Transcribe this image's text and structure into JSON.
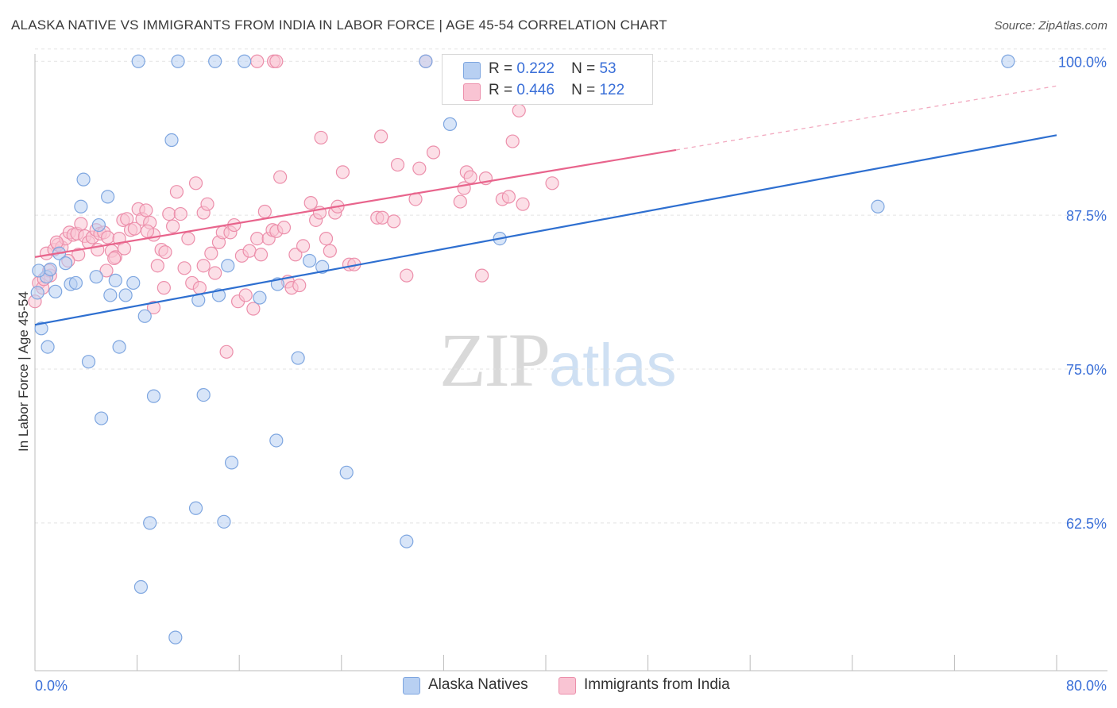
{
  "title": "ALASKA NATIVE VS IMMIGRANTS FROM INDIA IN LABOR FORCE | AGE 45-54 CORRELATION CHART",
  "source": "Source: ZipAtlas.com",
  "watermark": {
    "zip": "ZIP",
    "atlas": "atlas"
  },
  "legend": {
    "rows": [
      {
        "r_label": "R =",
        "r_value": "0.222",
        "n_label": "N =",
        "n_value": "53",
        "color": "#b8d0f2",
        "border": "#7ea6e0"
      },
      {
        "r_label": "R =",
        "r_value": "0.446",
        "n_label": "N =",
        "n_value": "122",
        "color": "#f9c4d3",
        "border": "#ec8fab"
      }
    ]
  },
  "bottom_legend": [
    {
      "label": "Alaska Natives",
      "color": "#b8d0f2",
      "border": "#7ea6e0"
    },
    {
      "label": "Immigrants from India",
      "color": "#f9c4d3",
      "border": "#ec8fab"
    }
  ],
  "chart_data": {
    "type": "scatter",
    "title": "ALASKA NATIVE VS IMMIGRANTS FROM INDIA IN LABOR FORCE | AGE 45-54 CORRELATION CHART",
    "xlabel": "",
    "ylabel": "In Labor Force | Age 45-54",
    "xlim": [
      0,
      80
    ],
    "ylim": [
      50.5,
      101.5
    ],
    "x_tick_labels": [
      "0.0%",
      "80.0%"
    ],
    "y_ticks": [
      62.5,
      75.0,
      87.5,
      100.0
    ],
    "y_tick_labels": [
      "62.5%",
      "75.0%",
      "87.5%",
      "100.0%"
    ],
    "grid": true,
    "legend_position": "top-center",
    "series": [
      {
        "name": "Alaska Natives",
        "color": "#7ea6e0",
        "fill": "#b8d0f2",
        "line_color": "#2e6fd0",
        "trend": {
          "x": [
            0,
            80
          ],
          "y": [
            78.6,
            94.0
          ]
        },
        "points": [
          [
            0.2,
            81.2
          ],
          [
            0.5,
            78.3
          ],
          [
            0.9,
            82.5
          ],
          [
            1.2,
            83.1
          ],
          [
            1.6,
            81.3
          ],
          [
            1.9,
            84.4
          ],
          [
            2.4,
            83.6
          ],
          [
            2.8,
            81.9
          ],
          [
            3.2,
            82.0
          ],
          [
            3.6,
            88.2
          ],
          [
            3.8,
            90.4
          ],
          [
            4.2,
            75.6
          ],
          [
            4.8,
            82.5
          ],
          [
            5.0,
            86.7
          ],
          [
            5.2,
            71.0
          ],
          [
            5.7,
            89.0
          ],
          [
            5.9,
            81.0
          ],
          [
            6.3,
            82.2
          ],
          [
            6.6,
            76.8
          ],
          [
            7.1,
            81.0
          ],
          [
            7.7,
            82.0
          ],
          [
            8.1,
            100.0
          ],
          [
            8.3,
            57.3
          ],
          [
            8.6,
            79.3
          ],
          [
            9.0,
            62.5
          ],
          [
            9.3,
            72.8
          ],
          [
            10.7,
            93.6
          ],
          [
            11.0,
            53.2
          ],
          [
            11.2,
            100.0
          ],
          [
            12.6,
            63.7
          ],
          [
            12.8,
            80.6
          ],
          [
            13.2,
            72.9
          ],
          [
            14.1,
            100.0
          ],
          [
            14.4,
            81.0
          ],
          [
            14.8,
            62.6
          ],
          [
            15.1,
            83.4
          ],
          [
            15.4,
            67.4
          ],
          [
            16.4,
            100.0
          ],
          [
            17.6,
            80.8
          ],
          [
            18.9,
            69.2
          ],
          [
            19.0,
            81.9
          ],
          [
            20.6,
            75.9
          ],
          [
            21.5,
            83.8
          ],
          [
            22.5,
            83.3
          ],
          [
            24.4,
            66.6
          ],
          [
            29.1,
            61.0
          ],
          [
            30.6,
            100.0
          ],
          [
            32.5,
            94.9
          ],
          [
            36.4,
            85.6
          ],
          [
            66.0,
            88.2
          ],
          [
            76.2,
            100.0
          ],
          [
            0.3,
            83.0
          ],
          [
            1.0,
            76.8
          ]
        ]
      },
      {
        "name": "Immigrants from India",
        "color": "#ec8fab",
        "fill": "#f9c4d3",
        "line_color": "#e8648c",
        "trend": {
          "x": [
            0,
            50.2
          ],
          "y": [
            84.1,
            92.8
          ]
        },
        "trend_dashed": {
          "x": [
            50.2,
            80
          ],
          "y": [
            92.8,
            98.0
          ]
        },
        "points": [
          [
            0.0,
            80.5
          ],
          [
            0.3,
            82.0
          ],
          [
            0.6,
            81.6
          ],
          [
            0.9,
            84.4
          ],
          [
            1.2,
            82.6
          ],
          [
            1.5,
            84.7
          ],
          [
            1.8,
            85.1
          ],
          [
            2.1,
            84.9
          ],
          [
            2.4,
            85.6
          ],
          [
            2.7,
            86.1
          ],
          [
            3.0,
            85.9
          ],
          [
            3.3,
            86.0
          ],
          [
            3.6,
            86.8
          ],
          [
            3.9,
            85.8
          ],
          [
            4.2,
            85.3
          ],
          [
            4.5,
            85.7
          ],
          [
            4.8,
            86.3
          ],
          [
            5.1,
            86.0
          ],
          [
            5.4,
            86.1
          ],
          [
            5.7,
            85.7
          ],
          [
            6.0,
            84.6
          ],
          [
            6.3,
            84.1
          ],
          [
            6.6,
            85.6
          ],
          [
            6.9,
            87.1
          ],
          [
            7.2,
            87.2
          ],
          [
            7.5,
            86.3
          ],
          [
            7.8,
            86.4
          ],
          [
            8.1,
            88.0
          ],
          [
            8.4,
            87.2
          ],
          [
            8.7,
            87.9
          ],
          [
            9.0,
            86.9
          ],
          [
            9.3,
            85.9
          ],
          [
            9.6,
            83.4
          ],
          [
            9.9,
            84.7
          ],
          [
            10.2,
            84.5
          ],
          [
            10.5,
            87.6
          ],
          [
            10.8,
            86.6
          ],
          [
            11.1,
            89.4
          ],
          [
            11.4,
            87.6
          ],
          [
            11.7,
            83.2
          ],
          [
            12.0,
            85.6
          ],
          [
            12.3,
            82.0
          ],
          [
            12.6,
            90.1
          ],
          [
            12.9,
            81.6
          ],
          [
            13.2,
            87.7
          ],
          [
            13.5,
            88.4
          ],
          [
            13.8,
            84.4
          ],
          [
            14.1,
            82.8
          ],
          [
            14.4,
            85.3
          ],
          [
            14.7,
            86.1
          ],
          [
            15.0,
            76.4
          ],
          [
            15.3,
            86.1
          ],
          [
            15.6,
            86.7
          ],
          [
            15.9,
            80.5
          ],
          [
            16.2,
            84.2
          ],
          [
            16.5,
            81.0
          ],
          [
            16.8,
            84.6
          ],
          [
            17.1,
            79.9
          ],
          [
            17.4,
            85.6
          ],
          [
            17.7,
            84.3
          ],
          [
            18.0,
            87.8
          ],
          [
            18.3,
            85.6
          ],
          [
            18.6,
            86.3
          ],
          [
            18.9,
            86.2
          ],
          [
            19.2,
            90.6
          ],
          [
            19.5,
            86.5
          ],
          [
            19.8,
            82.1
          ],
          [
            20.1,
            81.6
          ],
          [
            20.4,
            84.3
          ],
          [
            20.7,
            81.8
          ],
          [
            21.0,
            85.0
          ],
          [
            21.6,
            88.5
          ],
          [
            22.0,
            87.1
          ],
          [
            22.3,
            87.7
          ],
          [
            22.8,
            85.6
          ],
          [
            23.1,
            84.6
          ],
          [
            23.5,
            87.7
          ],
          [
            23.7,
            88.2
          ],
          [
            24.1,
            91.0
          ],
          [
            24.6,
            83.5
          ],
          [
            25.0,
            83.5
          ],
          [
            26.8,
            87.3
          ],
          [
            27.2,
            87.3
          ],
          [
            28.1,
            87.0
          ],
          [
            28.4,
            91.6
          ],
          [
            29.1,
            82.6
          ],
          [
            29.8,
            88.8
          ],
          [
            30.1,
            91.3
          ],
          [
            30.6,
            100.0
          ],
          [
            31.2,
            92.6
          ],
          [
            33.3,
            88.6
          ],
          [
            33.6,
            89.7
          ],
          [
            33.8,
            91.0
          ],
          [
            34.1,
            90.6
          ],
          [
            35.0,
            82.6
          ],
          [
            35.3,
            90.5
          ],
          [
            36.6,
            88.8
          ],
          [
            37.1,
            89.0
          ],
          [
            37.4,
            93.5
          ],
          [
            37.9,
            96.0
          ],
          [
            38.2,
            88.4
          ],
          [
            40.5,
            90.1
          ],
          [
            17.4,
            100.0
          ],
          [
            18.7,
            100.0
          ],
          [
            18.9,
            100.0
          ],
          [
            27.1,
            93.9
          ],
          [
            22.4,
            93.8
          ],
          [
            13.2,
            83.4
          ],
          [
            10.1,
            81.6
          ],
          [
            9.3,
            80.0
          ],
          [
            8.8,
            86.2
          ],
          [
            7.0,
            84.8
          ],
          [
            6.2,
            84.0
          ],
          [
            5.6,
            83.0
          ],
          [
            4.9,
            84.7
          ],
          [
            3.4,
            84.3
          ],
          [
            2.6,
            83.8
          ],
          [
            1.7,
            85.3
          ],
          [
            1.1,
            83.0
          ],
          [
            0.7,
            82.3
          ]
        ]
      }
    ]
  }
}
